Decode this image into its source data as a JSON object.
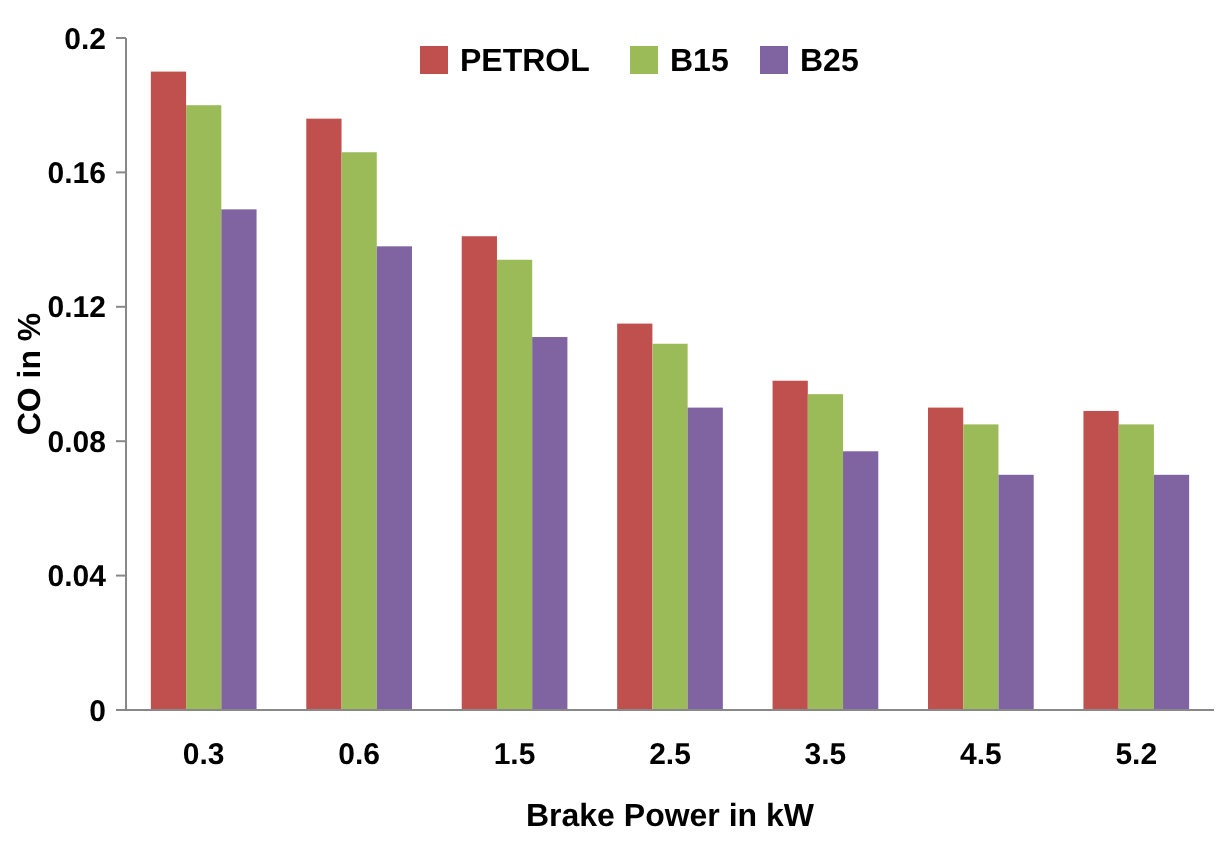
{
  "chart_data": {
    "type": "bar",
    "xlabel": "Brake Power in kW",
    "ylabel": "CO in %",
    "categories": [
      "0.3",
      "0.6",
      "1.5",
      "2.5",
      "3.5",
      "4.5",
      "5.2"
    ],
    "series": [
      {
        "name": "PETROL",
        "color": "#c0504d",
        "values": [
          0.19,
          0.176,
          0.141,
          0.115,
          0.098,
          0.09,
          0.089
        ]
      },
      {
        "name": "B15",
        "color": "#9bbb59",
        "values": [
          0.18,
          0.166,
          0.134,
          0.109,
          0.094,
          0.085,
          0.085
        ]
      },
      {
        "name": "B25",
        "color": "#8064a2",
        "values": [
          0.149,
          0.138,
          0.111,
          0.09,
          0.077,
          0.07,
          0.07
        ]
      }
    ],
    "ylim": [
      0,
      0.2
    ],
    "yticks": [
      0,
      0.04,
      0.08,
      0.12,
      0.16,
      0.2
    ],
    "grid": false,
    "legend": "top right"
  }
}
